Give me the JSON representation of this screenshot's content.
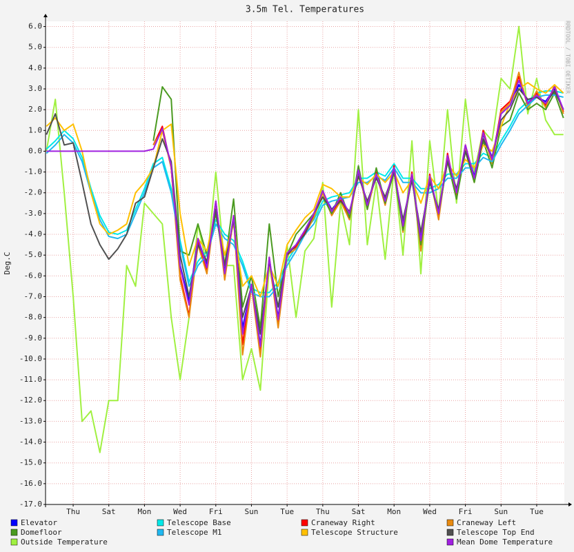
{
  "chart_data": {
    "type": "line",
    "title": "3.5m Tel. Temperatures",
    "ylabel": "Deg.C",
    "watermark": "RRDTOOL / TOBI OETIKER",
    "grid": true,
    "xlim": [
      -1.05,
      28.05
    ],
    "ylim": [
      -17,
      6.25
    ],
    "xticks": [
      {
        "value": 0.5,
        "label": "Thu"
      },
      {
        "value": 2.5,
        "label": "Sat"
      },
      {
        "value": 4.5,
        "label": "Mon"
      },
      {
        "value": 6.5,
        "label": "Wed"
      },
      {
        "value": 8.5,
        "label": "Fri"
      },
      {
        "value": 10.5,
        "label": "Sun"
      },
      {
        "value": 12.5,
        "label": "Tue"
      },
      {
        "value": 14.5,
        "label": "Thu"
      },
      {
        "value": 16.5,
        "label": "Sat"
      },
      {
        "value": 18.5,
        "label": "Mon"
      },
      {
        "value": 20.5,
        "label": "Wed"
      },
      {
        "value": 22.5,
        "label": "Fri"
      },
      {
        "value": 24.5,
        "label": "Sun"
      },
      {
        "value": 26.5,
        "label": "Tue"
      }
    ],
    "yticks": [
      {
        "value": 6,
        "label": "6.0"
      },
      {
        "value": 5,
        "label": "5.0"
      },
      {
        "value": 4,
        "label": "4.0"
      },
      {
        "value": 3,
        "label": "3.0"
      },
      {
        "value": 2,
        "label": "2.0"
      },
      {
        "value": 1,
        "label": "1.0"
      },
      {
        "value": 0,
        "label": "0.0"
      },
      {
        "value": -1,
        "label": "-1.0"
      },
      {
        "value": -2,
        "label": "-2.0"
      },
      {
        "value": -3,
        "label": "-3.0"
      },
      {
        "value": -4,
        "label": "-4.0"
      },
      {
        "value": -5,
        "label": "-5.0"
      },
      {
        "value": -6,
        "label": "-6.0"
      },
      {
        "value": -7,
        "label": "-7.0"
      },
      {
        "value": -8,
        "label": "-8.0"
      },
      {
        "value": -9,
        "label": "-9.0"
      },
      {
        "value": -10,
        "label": "-10.0"
      },
      {
        "value": -11,
        "label": "-11.0"
      },
      {
        "value": -12,
        "label": "-12.0"
      },
      {
        "value": -13,
        "label": "-13.0"
      },
      {
        "value": -14,
        "label": "-14.0"
      },
      {
        "value": -15,
        "label": "-15.0"
      },
      {
        "value": -16,
        "label": "-16.0"
      },
      {
        "value": -17,
        "label": "-17.0"
      }
    ],
    "x": [
      -1,
      -0.5,
      0,
      0.5,
      1,
      1.5,
      2,
      2.5,
      3,
      3.5,
      4,
      4.5,
      5,
      5.5,
      6,
      6.5,
      7,
      7.5,
      8,
      8.5,
      9,
      9.5,
      10,
      10.5,
      11,
      11.5,
      12,
      12.5,
      13,
      13.5,
      14,
      14.5,
      15,
      15.5,
      16,
      16.5,
      17,
      17.5,
      18,
      18.5,
      19,
      19.5,
      20,
      20.5,
      21,
      21.5,
      22,
      22.5,
      23,
      23.5,
      24,
      24.5,
      25,
      25.5,
      26,
      26.5,
      27,
      27.5,
      28
    ],
    "series": [
      {
        "name": "Elevator",
        "color": "#0000ff",
        "values": [
          null,
          null,
          null,
          null,
          null,
          null,
          null,
          null,
          null,
          null,
          null,
          null,
          0.3,
          1.1,
          -0.8,
          -5.5,
          -7.2,
          -4.2,
          -5.5,
          -2.5,
          -5.8,
          -3.2,
          -8.5,
          -6.5,
          -9.3,
          -5.2,
          -8.0,
          -5.0,
          -4.5,
          -3.8,
          -3.0,
          -2.0,
          -2.8,
          -2.3,
          -3.0,
          -1.0,
          -2.5,
          -1.2,
          -2.3,
          -0.9,
          -3.5,
          -1.2,
          -4.2,
          -1.3,
          -3.0,
          -0.3,
          -2.0,
          0.2,
          -1.2,
          0.8,
          -0.3,
          1.8,
          2.2,
          3.2,
          2.4,
          2.6,
          2.4,
          3.0,
          2.0
        ]
      },
      {
        "name": "Telescope Base",
        "color": "#00e8e8",
        "values": [
          0.1,
          0.5,
          1.0,
          0.6,
          -0.3,
          -1.8,
          -3.1,
          -3.9,
          -4.0,
          -3.8,
          -2.8,
          -1.8,
          -0.6,
          -0.3,
          -1.8,
          -4.3,
          -6.3,
          -5.3,
          -4.8,
          -3.3,
          -4.0,
          -4.3,
          -5.3,
          -6.6,
          -6.8,
          -6.8,
          -6.3,
          -5.3,
          -4.6,
          -3.8,
          -3.3,
          -2.4,
          -2.2,
          -2.1,
          -2.0,
          -1.3,
          -1.3,
          -1.0,
          -1.2,
          -0.6,
          -1.3,
          -1.3,
          -1.8,
          -1.8,
          -1.6,
          -1.1,
          -1.1,
          -0.6,
          -0.6,
          -0.1,
          -0.3,
          0.5,
          1.2,
          2.0,
          2.4,
          2.8,
          2.9,
          2.9,
          2.8
        ]
      },
      {
        "name": "Craneway Right",
        "color": "#ff0000",
        "values": [
          null,
          null,
          null,
          null,
          null,
          null,
          null,
          null,
          null,
          null,
          null,
          null,
          0.3,
          1.2,
          -0.8,
          -6.0,
          -7.9,
          -4.3,
          -5.7,
          -2.4,
          -6.1,
          -3.1,
          -9.3,
          -6.4,
          -9.7,
          -5.1,
          -8.3,
          -4.9,
          -4.6,
          -3.9,
          -3.1,
          -1.9,
          -3.0,
          -2.3,
          -3.2,
          -0.8,
          -2.7,
          -1.0,
          -2.5,
          -0.7,
          -3.8,
          -1.0,
          -4.6,
          -1.1,
          -3.2,
          -0.1,
          -2.2,
          0.3,
          -1.4,
          1.0,
          -0.5,
          2.0,
          2.4,
          3.6,
          2.2,
          2.8,
          2.2,
          3.1,
          1.9
        ]
      },
      {
        "name": "Craneway Left",
        "color": "#e88a10",
        "values": [
          null,
          null,
          null,
          null,
          null,
          null,
          null,
          null,
          null,
          null,
          null,
          null,
          0.3,
          1.0,
          -0.8,
          -6.2,
          -8.0,
          -4.5,
          -5.9,
          -2.5,
          -6.2,
          -3.2,
          -9.8,
          -6.5,
          -9.9,
          -5.2,
          -8.5,
          -5.0,
          -4.7,
          -4.0,
          -3.2,
          -2.0,
          -3.1,
          -2.4,
          -3.3,
          -0.9,
          -2.8,
          -1.1,
          -2.6,
          -0.8,
          -3.9,
          -1.1,
          -4.8,
          -1.2,
          -3.3,
          -0.2,
          -2.3,
          0.2,
          -1.5,
          0.9,
          -0.6,
          1.9,
          2.3,
          3.8,
          2.1,
          2.9,
          2.1,
          3.2,
          1.8
        ]
      },
      {
        "name": "Domefloor",
        "color": "#4a9a20",
        "values": [
          null,
          null,
          null,
          null,
          null,
          null,
          null,
          null,
          null,
          null,
          null,
          null,
          0.5,
          3.1,
          2.5,
          -4.8,
          -5.0,
          -3.5,
          -5.0,
          -3.0,
          -5.5,
          -2.3,
          -7.5,
          -6.0,
          -8.5,
          -3.5,
          -7.0,
          -5.0,
          -4.0,
          -3.5,
          -3.0,
          -2.2,
          -3.0,
          -2.0,
          -3.2,
          -0.7,
          -2.8,
          -0.8,
          -2.5,
          -1.0,
          -3.8,
          -1.2,
          -4.5,
          -1.4,
          -3.0,
          -0.5,
          -2.3,
          0.0,
          -1.5,
          0.5,
          -0.8,
          1.2,
          1.5,
          2.8,
          2.0,
          2.3,
          2.0,
          2.8,
          1.6
        ]
      },
      {
        "name": "Telescope M1",
        "color": "#20b8f0",
        "values": [
          -0.1,
          0.3,
          0.8,
          0.4,
          -0.5,
          -2.0,
          -3.3,
          -4.1,
          -4.2,
          -4.0,
          -3.0,
          -2.0,
          -0.8,
          -0.5,
          -2.0,
          -4.5,
          -6.5,
          -5.5,
          -5.0,
          -3.5,
          -4.2,
          -4.5,
          -5.5,
          -6.8,
          -7.0,
          -7.0,
          -6.5,
          -5.5,
          -4.8,
          -4.0,
          -3.5,
          -2.6,
          -2.4,
          -2.3,
          -2.2,
          -1.5,
          -1.5,
          -1.2,
          -1.4,
          -0.8,
          -1.5,
          -1.5,
          -2.0,
          -2.0,
          -1.8,
          -1.3,
          -1.3,
          -0.8,
          -0.8,
          -0.3,
          -0.5,
          0.3,
          1.0,
          1.8,
          2.2,
          2.6,
          2.7,
          2.7,
          2.6
        ]
      },
      {
        "name": "Telescope Structure",
        "color": "#ffc000",
        "values": [
          1.2,
          1.6,
          1.0,
          1.3,
          0.0,
          -2.0,
          -3.5,
          -4.0,
          -3.8,
          -3.5,
          -2.0,
          -1.5,
          -0.8,
          1.0,
          1.3,
          -3.0,
          -5.5,
          -4.2,
          -4.8,
          -2.8,
          -5.0,
          -3.5,
          -6.5,
          -6.0,
          -7.0,
          -5.5,
          -6.5,
          -4.5,
          -3.8,
          -3.2,
          -2.8,
          -1.6,
          -1.8,
          -2.2,
          -2.2,
          -1.3,
          -1.6,
          -1.1,
          -1.5,
          -1.0,
          -2.0,
          -1.4,
          -2.5,
          -1.2,
          -1.8,
          -0.6,
          -1.2,
          -0.4,
          -0.8,
          0.3,
          0.0,
          1.2,
          2.3,
          3.0,
          3.3,
          3.0,
          2.8,
          3.2,
          2.8
        ]
      },
      {
        "name": "Telescope Top End",
        "color": "#505050",
        "values": [
          0.8,
          1.8,
          0.3,
          0.4,
          -1.5,
          -3.5,
          -4.5,
          -5.2,
          -4.7,
          -4.0,
          -2.5,
          -2.2,
          -0.8,
          0.6,
          -0.5,
          -5.0,
          -7.0,
          -4.5,
          -5.3,
          -2.8,
          -5.5,
          -3.3,
          -8.0,
          -6.5,
          -8.8,
          -5.3,
          -7.5,
          -5.0,
          -4.5,
          -4.0,
          -3.0,
          -2.2,
          -2.8,
          -2.4,
          -2.9,
          -1.2,
          -2.4,
          -1.3,
          -2.2,
          -1.0,
          -3.3,
          -1.4,
          -3.9,
          -1.5,
          -2.8,
          -0.5,
          -1.8,
          0.0,
          -1.3,
          0.6,
          -0.3,
          1.5,
          2.0,
          3.0,
          2.5,
          2.6,
          2.3,
          2.9,
          2.0
        ]
      },
      {
        "name": "Outside Temperature",
        "color": "#a0f040",
        "values": [
          0.0,
          2.5,
          -2.0,
          -7.0,
          -13.0,
          -12.5,
          -14.5,
          -12.0,
          -12.0,
          -5.5,
          -6.5,
          -2.5,
          -3.0,
          -3.5,
          -8.0,
          -11.0,
          -8.0,
          -3.5,
          -5.5,
          -1.0,
          -5.5,
          -5.5,
          -11.0,
          -9.5,
          -11.5,
          -5.5,
          -8.0,
          -4.5,
          -8.0,
          -4.8,
          -4.2,
          -1.5,
          -7.5,
          -2.5,
          -4.5,
          2.0,
          -4.5,
          -1.5,
          -5.2,
          -0.8,
          -5.0,
          0.5,
          -5.9,
          0.5,
          -3.0,
          2.0,
          -2.5,
          2.5,
          -1.0,
          1.0,
          0.5,
          3.5,
          3.0,
          6.0,
          1.8,
          3.5,
          1.5,
          0.8,
          0.8
        ]
      },
      {
        "name": "Mean Dome Temperature",
        "color": "#a020e0",
        "values": [
          0,
          0,
          0,
          0,
          0,
          0,
          0,
          0,
          0,
          0,
          0,
          0,
          0.1,
          1.1,
          -0.7,
          -5.6,
          -7.4,
          -4.2,
          -5.6,
          -2.4,
          -5.9,
          -3.1,
          -8.8,
          -6.4,
          -9.4,
          -5.1,
          -8.1,
          -4.9,
          -4.5,
          -3.8,
          -3.0,
          -1.9,
          -2.9,
          -2.2,
          -3.0,
          -0.9,
          -2.6,
          -1.1,
          -2.4,
          -0.8,
          -3.6,
          -1.1,
          -4.3,
          -1.2,
          -3.0,
          -0.2,
          -2.0,
          0.3,
          -1.3,
          0.9,
          -0.4,
          1.8,
          2.2,
          3.4,
          2.3,
          2.7,
          2.3,
          3.1,
          2.0
        ]
      }
    ]
  }
}
